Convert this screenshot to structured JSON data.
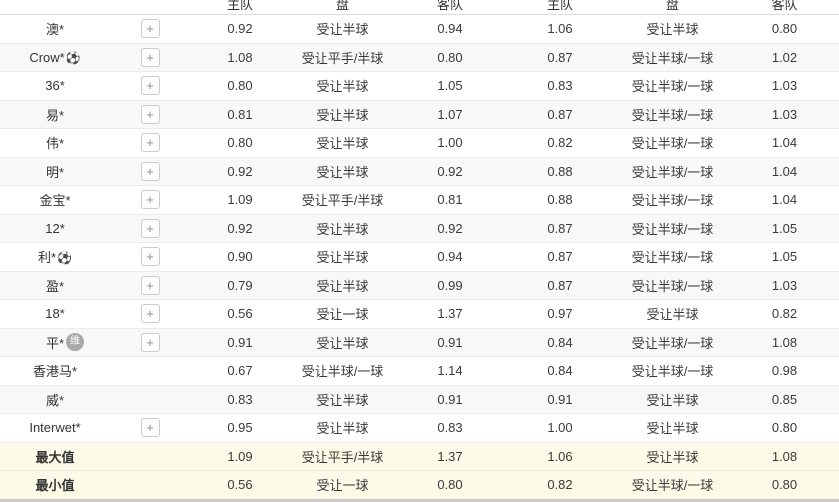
{
  "table": {
    "headers": [
      "主队",
      "盘",
      "客队",
      "主队",
      "盘",
      "客队"
    ],
    "rows": [
      {
        "company": "澳*",
        "soccer_icon": false,
        "badge": "",
        "plus": true,
        "summary": false,
        "h1": "0.92",
        "p1": "受让半球",
        "a1": "0.94",
        "h2": "1.06",
        "p2": "受让半球",
        "a2": "0.80"
      },
      {
        "company": "Crow*",
        "soccer_icon": true,
        "badge": "",
        "plus": true,
        "summary": false,
        "h1": "1.08",
        "p1": "受让平手/半球",
        "a1": "0.80",
        "h2": "0.87",
        "p2": "受让半球/一球",
        "a2": "1.02"
      },
      {
        "company": "36*",
        "soccer_icon": false,
        "badge": "",
        "plus": true,
        "summary": false,
        "h1": "0.80",
        "p1": "受让半球",
        "a1": "1.05",
        "h2": "0.83",
        "p2": "受让半球/一球",
        "a2": "1.03"
      },
      {
        "company": "易*",
        "soccer_icon": false,
        "badge": "",
        "plus": true,
        "summary": false,
        "h1": "0.81",
        "p1": "受让半球",
        "a1": "1.07",
        "h2": "0.87",
        "p2": "受让半球/一球",
        "a2": "1.03"
      },
      {
        "company": "伟*",
        "soccer_icon": false,
        "badge": "",
        "plus": true,
        "summary": false,
        "h1": "0.80",
        "p1": "受让半球",
        "a1": "1.00",
        "h2": "0.82",
        "p2": "受让半球/一球",
        "a2": "1.04"
      },
      {
        "company": "明*",
        "soccer_icon": false,
        "badge": "",
        "plus": true,
        "summary": false,
        "h1": "0.92",
        "p1": "受让半球",
        "a1": "0.92",
        "h2": "0.88",
        "p2": "受让半球/一球",
        "a2": "1.04"
      },
      {
        "company": "金宝*",
        "soccer_icon": false,
        "badge": "",
        "plus": true,
        "summary": false,
        "h1": "1.09",
        "p1": "受让平手/半球",
        "a1": "0.81",
        "h2": "0.88",
        "p2": "受让半球/一球",
        "a2": "1.04"
      },
      {
        "company": "12*",
        "soccer_icon": false,
        "badge": "",
        "plus": true,
        "summary": false,
        "h1": "0.92",
        "p1": "受让半球",
        "a1": "0.92",
        "h2": "0.87",
        "p2": "受让半球/一球",
        "a2": "1.05"
      },
      {
        "company": "利*",
        "soccer_icon": true,
        "badge": "",
        "plus": true,
        "summary": false,
        "h1": "0.90",
        "p1": "受让半球",
        "a1": "0.94",
        "h2": "0.87",
        "p2": "受让半球/一球",
        "a2": "1.05"
      },
      {
        "company": "盈*",
        "soccer_icon": false,
        "badge": "",
        "plus": true,
        "summary": false,
        "h1": "0.79",
        "p1": "受让半球",
        "a1": "0.99",
        "h2": "0.87",
        "p2": "受让半球/一球",
        "a2": "1.03"
      },
      {
        "company": "18*",
        "soccer_icon": false,
        "badge": "",
        "plus": true,
        "summary": false,
        "h1": "0.56",
        "p1": "受让一球",
        "a1": "1.37",
        "h2": "0.97",
        "p2": "受让半球",
        "a2": "0.82"
      },
      {
        "company": "平*",
        "soccer_icon": false,
        "badge": "维",
        "plus": true,
        "summary": false,
        "h1": "0.91",
        "p1": "受让半球",
        "a1": "0.91",
        "h2": "0.84",
        "p2": "受让半球/一球",
        "a2": "1.08"
      },
      {
        "company": "香港马*",
        "soccer_icon": false,
        "badge": "",
        "plus": false,
        "summary": false,
        "h1": "0.67",
        "p1": "受让半球/一球",
        "a1": "1.14",
        "h2": "0.84",
        "p2": "受让半球/一球",
        "a2": "0.98"
      },
      {
        "company": "威*",
        "soccer_icon": false,
        "badge": "",
        "plus": false,
        "summary": false,
        "h1": "0.83",
        "p1": "受让半球",
        "a1": "0.91",
        "h2": "0.91",
        "p2": "受让半球",
        "a2": "0.85"
      },
      {
        "company": "Interwet*",
        "soccer_icon": false,
        "badge": "",
        "plus": true,
        "summary": false,
        "h1": "0.95",
        "p1": "受让半球",
        "a1": "0.83",
        "h2": "1.00",
        "p2": "受让半球",
        "a2": "0.80"
      },
      {
        "company": "最大值",
        "soccer_icon": false,
        "badge": "",
        "plus": false,
        "summary": true,
        "h1": "1.09",
        "p1": "受让平手/半球",
        "a1": "1.37",
        "h2": "1.06",
        "p2": "受让半球",
        "a2": "1.08"
      },
      {
        "company": "最小值",
        "soccer_icon": false,
        "badge": "",
        "plus": false,
        "summary": true,
        "h1": "0.56",
        "p1": "受让一球",
        "a1": "0.80",
        "h2": "0.82",
        "p2": "受让半球/一球",
        "a2": "0.80"
      }
    ]
  },
  "icons": {
    "plus": "+",
    "soccer_ball": "⚽",
    "maintenance_badge": "维"
  },
  "colors": {
    "alt_row": "#f8f8f8",
    "summary_row": "#fcfbe8",
    "row_border": "#ebebeb",
    "bottom_border": "#cccccc"
  }
}
